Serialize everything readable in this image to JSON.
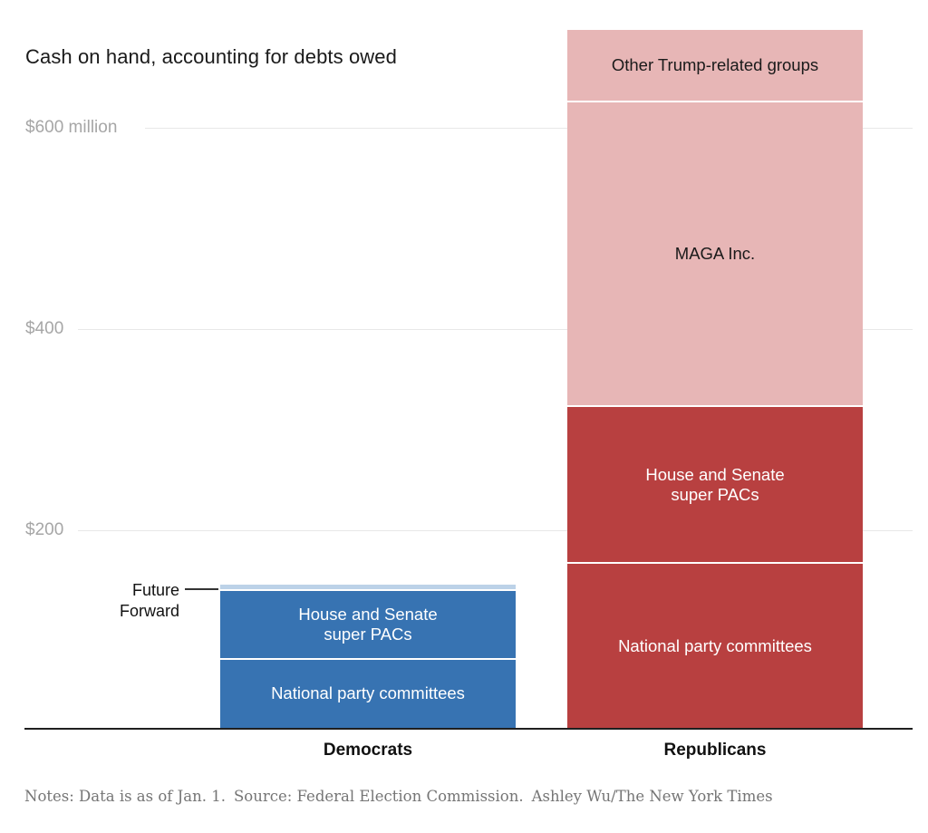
{
  "title": "Cash on hand, accounting for debts owed",
  "colors": {
    "dem_blue": "#3773b2",
    "dem_light_blue": "#bcd2e8",
    "rep_red": "#b84040",
    "rep_pink": "#e7b6b6",
    "white_text": "#ffffff",
    "dark_text": "#1a1a1a",
    "grid": "#e8e8e8",
    "axis": "#1f1f1f",
    "tick_text": "#a6a6a6",
    "notes_text": "#757575"
  },
  "y_axis": {
    "ticks": [
      {
        "label": "$600 million",
        "value": 600
      },
      {
        "label": "$400",
        "value": 400
      },
      {
        "label": "$200",
        "value": 200
      }
    ]
  },
  "x_axis": {
    "categories": [
      "Democrats",
      "Republicans"
    ]
  },
  "annotation": {
    "label": "Future Forward",
    "line1": "Future",
    "line2": "Forward"
  },
  "notes": {
    "notes": "Notes: Data is as of Jan. 1.",
    "source": "Source: Federal Election Commission.",
    "credit": "Ashley Wu/The New York Times"
  },
  "chart_data": {
    "type": "bar",
    "stacked": true,
    "title": "Cash on hand, accounting for debts owed",
    "unit": "millions of USD",
    "categories": [
      "Democrats",
      "Republicans"
    ],
    "ylim": [
      0,
      700
    ],
    "gridlines": [
      200,
      400,
      600
    ],
    "legend": "none (labels inside segments)",
    "series": [
      {
        "name": "National party committees",
        "values": [
          68,
          164
        ]
      },
      {
        "name": "House and Senate super PACs",
        "values": [
          69,
          157
        ]
      },
      {
        "name": "Future Forward",
        "values": [
          6,
          0
        ]
      },
      {
        "name": "MAGA Inc.",
        "values": [
          0,
          305
        ]
      },
      {
        "name": "Other Trump-related groups",
        "values": [
          0,
          72
        ]
      }
    ],
    "totals": {
      "Democrats": 143,
      "Republicans": 698
    }
  },
  "bars": [
    {
      "category": "Democrats",
      "segments": [
        {
          "label_lines": [
            "National party committees"
          ],
          "value": 68,
          "fill": "dem_blue",
          "text": "white_text"
        },
        {
          "label_lines": [
            "House and Senate",
            "super PACs"
          ],
          "value": 69,
          "fill": "dem_blue",
          "text": "white_text"
        },
        {
          "label_lines": [],
          "value": 6,
          "fill": "dem_light_blue",
          "text": "dark_text",
          "name": "Future Forward"
        }
      ]
    },
    {
      "category": "Republicans",
      "segments": [
        {
          "label_lines": [
            "National party committees"
          ],
          "value": 164,
          "fill": "rep_red",
          "text": "white_text"
        },
        {
          "label_lines": [
            "House and Senate",
            "super PACs"
          ],
          "value": 157,
          "fill": "rep_red",
          "text": "white_text"
        },
        {
          "label_lines": [
            "MAGA Inc."
          ],
          "value": 305,
          "fill": "rep_pink",
          "text": "dark_text"
        },
        {
          "label_lines": [
            "Other Trump-related groups"
          ],
          "value": 72,
          "fill": "rep_pink",
          "text": "dark_text"
        }
      ]
    }
  ]
}
